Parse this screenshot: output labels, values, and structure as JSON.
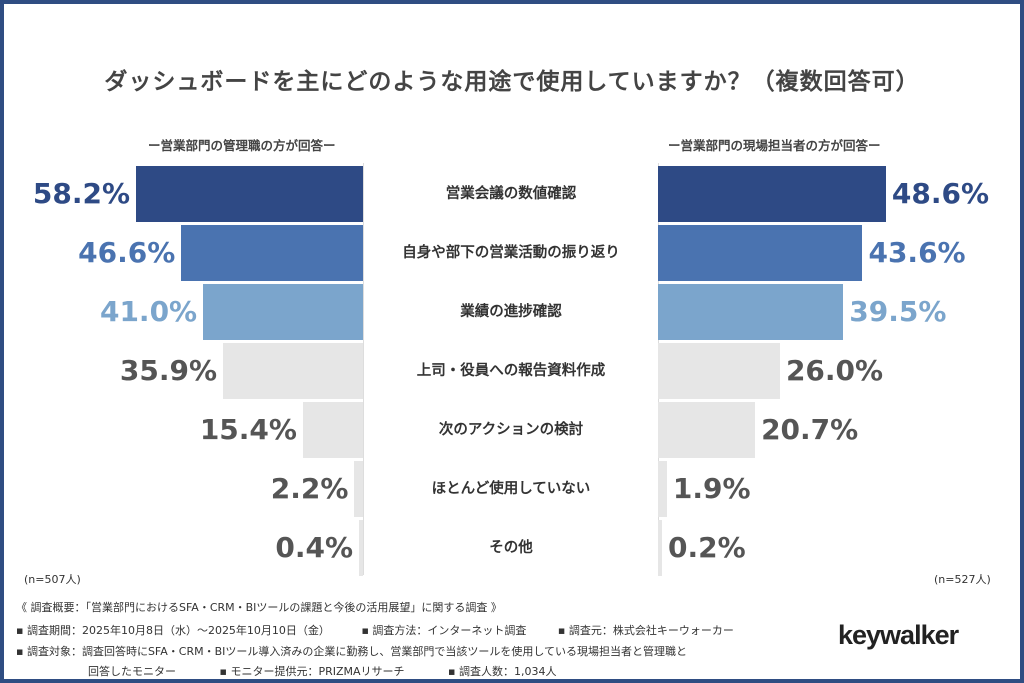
{
  "chart_data": {
    "type": "bar",
    "title": "ダッシュボードを主にどのような用途で使用していますか？（複数回答可）",
    "categories": [
      "営業会議の数値確認",
      "自身や部下の営業活動の振り返り",
      "業績の進捗確認",
      "上司・役員への報告資料作成",
      "次のアクションの検討",
      "ほとんど使用していない",
      "その他"
    ],
    "series": [
      {
        "name": "ー営業部門の管理職の方が回答ー",
        "n_label": "(n=507人)",
        "values": [
          58.2,
          46.6,
          41.0,
          35.9,
          15.4,
          2.2,
          0.4
        ],
        "labels": [
          "58.2%",
          "46.6%",
          "41.0%",
          "35.9%",
          "15.4%",
          "2.2%",
          "0.4%"
        ]
      },
      {
        "name": "ー営業部門の現場担当者の方が回答ー",
        "n_label": "(n=527人)",
        "values": [
          48.6,
          43.6,
          39.5,
          26.0,
          20.7,
          1.9,
          0.2
        ],
        "labels": [
          "48.6%",
          "43.6%",
          "39.5%",
          "26.0%",
          "20.7%",
          "1.9%",
          "0.2%"
        ]
      }
    ],
    "bar_colors": [
      "#2e4a85",
      "#4a73b0",
      "#7ba5cc",
      "#e6e6e6",
      "#e6e6e6",
      "#e6e6e6",
      "#e6e6e6"
    ],
    "label_colors": [
      "#2e4a85",
      "#4a73b0",
      "#7ba5cc",
      "#555555",
      "#555555",
      "#555555",
      "#555555"
    ]
  },
  "footer": {
    "line1": "《 調査概要：「営業部門におけるSFA・CRM・BIツールの課題と今後の活用展望」に関する調査 》",
    "period": "▪ 調査期間：2025年10月8日（水）～2025年10月10日（金）",
    "method": "▪ 調査方法：インターネット調査",
    "source": "▪ 調査元：株式会社キーウォーカー",
    "target": "▪ 調査対象：調査回答時にSFA・CRM・BIツール導入済みの企業に勤務し、営業部門で当該ツールを使用している現場担当者と管理職と",
    "target2": "回答したモニター",
    "provider": "▪ モニター提供元：PRIZMAリサーチ",
    "count": "▪ 調査人数：1,034人"
  },
  "logo": "keywalker"
}
